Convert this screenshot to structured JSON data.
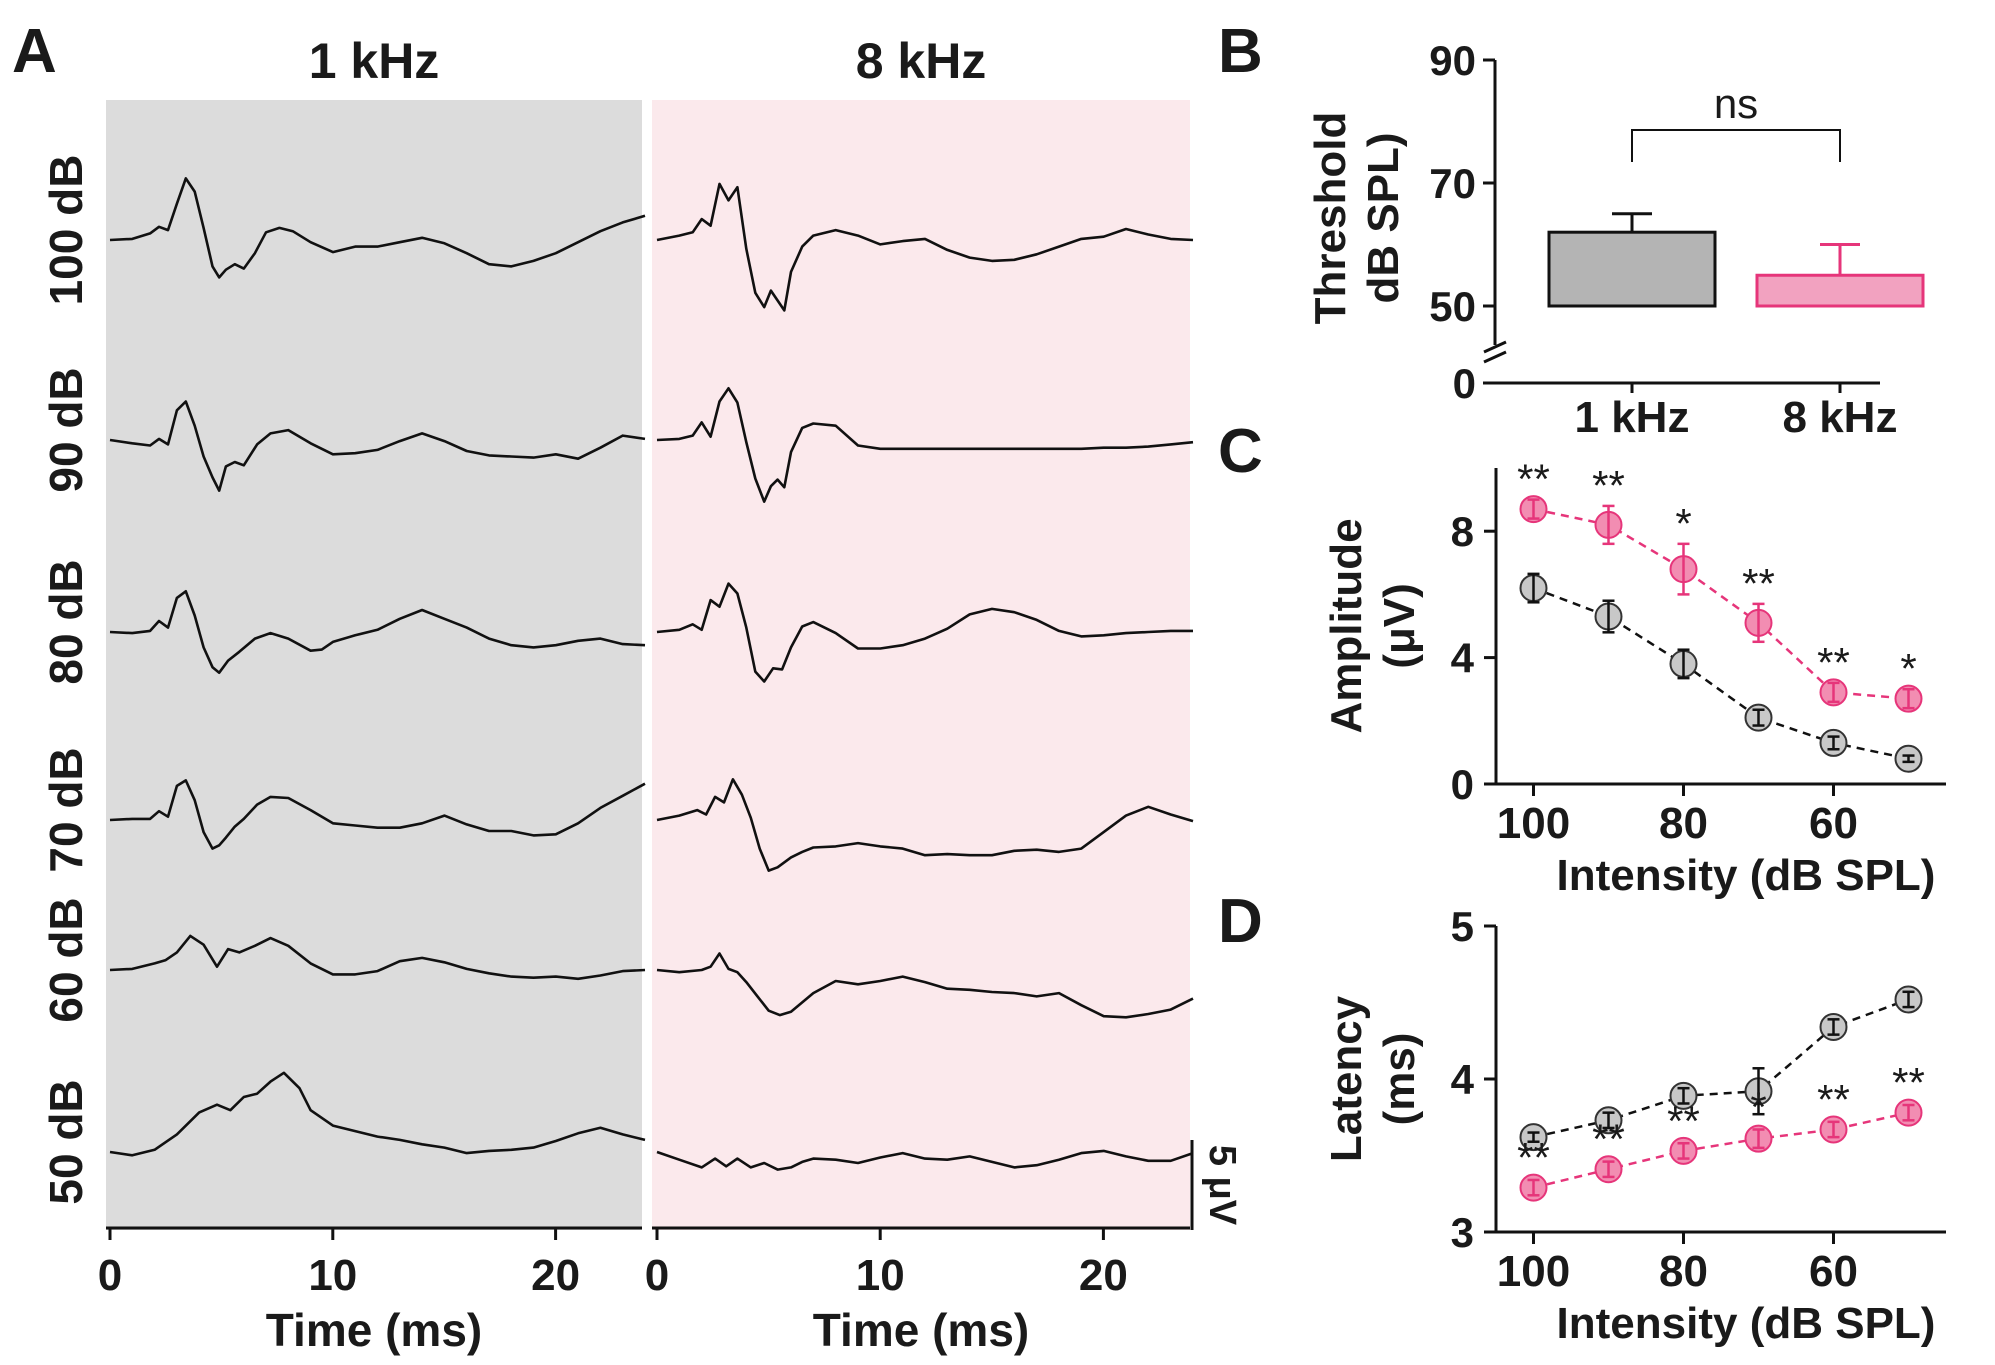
{
  "figure": {
    "panel_labels": [
      "A",
      "B",
      "C",
      "D"
    ]
  },
  "chart_data": [
    {
      "panel": "A",
      "type": "line",
      "description_title": "ABR waveforms",
      "columns": [
        {
          "title": "1 kHz",
          "bg_color": "#dcdcdc"
        },
        {
          "title": "8 kHz",
          "bg_color": "#fbe9ec"
        }
      ],
      "row_labels": [
        "100 dB",
        "90 dB",
        "80 dB",
        "70 dB",
        "60 dB",
        "50 dB"
      ],
      "xlabel": "Time (ms)",
      "xlim": [
        0,
        25
      ],
      "xticks": [
        "0",
        "10",
        "20"
      ],
      "scalebar_label": "5 μV",
      "line_color": "#111111",
      "series": [
        {
          "name": "1 kHz 100 dB",
          "x": [
            0,
            1,
            1.8,
            2.2,
            2.6,
            3,
            3.4,
            3.8,
            4.2,
            4.6,
            4.9,
            5.2,
            5.6,
            6,
            6.5,
            7,
            7.6,
            8.2,
            9,
            10,
            11,
            12,
            13,
            14,
            15,
            16,
            17,
            18,
            19,
            20,
            21,
            22,
            23,
            24
          ],
          "y": [
            0,
            0.1,
            0.6,
            1.2,
            0.9,
            3.3,
            5.6,
            4.4,
            1.1,
            -2.4,
            -3.4,
            -2.7,
            -2.2,
            -2.6,
            -1.2,
            0.7,
            1.1,
            0.8,
            -0.2,
            -1.1,
            -0.6,
            -0.6,
            -0.2,
            0.2,
            -0.3,
            -1.2,
            -2.2,
            -2.4,
            -1.9,
            -1.2,
            -0.2,
            0.8,
            1.6,
            2.2
          ]
        },
        {
          "name": "1 kHz 90 dB",
          "x": [
            0,
            1,
            1.8,
            2.2,
            2.6,
            3,
            3.4,
            3.8,
            4.2,
            4.6,
            4.9,
            5.2,
            5.6,
            6,
            6.6,
            7.2,
            8,
            9,
            10,
            11,
            12,
            13,
            14,
            15,
            16,
            17,
            18,
            19,
            20,
            21,
            22,
            23,
            24
          ],
          "y": [
            0,
            -0.3,
            -0.5,
            0.1,
            -0.4,
            2.7,
            3.5,
            1.3,
            -1.5,
            -3.4,
            -4.6,
            -2.4,
            -2,
            -2.3,
            -0.4,
            0.6,
            0.9,
            -0.3,
            -1.3,
            -1.2,
            -0.9,
            -0.1,
            0.6,
            -0.1,
            -1,
            -1.4,
            -1.5,
            -1.6,
            -1.3,
            -1.7,
            -0.7,
            0.4,
            0.1
          ]
        },
        {
          "name": "1 kHz 80 dB",
          "x": [
            0,
            1,
            1.8,
            2.2,
            2.6,
            3,
            3.4,
            3.8,
            4.2,
            4.6,
            4.9,
            5.3,
            5.8,
            6.5,
            7.2,
            8,
            9,
            9.5,
            10,
            11,
            12,
            13,
            14,
            15,
            16,
            17,
            18,
            19,
            20,
            21,
            22,
            23,
            24
          ],
          "y": [
            0,
            -0.1,
            0.1,
            1,
            0.4,
            3.1,
            3.7,
            1.5,
            -1.4,
            -3.2,
            -3.7,
            -2.6,
            -1.8,
            -0.6,
            -0.1,
            -0.6,
            -1.7,
            -1.6,
            -0.9,
            -0.3,
            0.2,
            1.2,
            2,
            1.2,
            0.4,
            -0.6,
            -1.2,
            -1.4,
            -1.2,
            -0.8,
            -0.6,
            -1.1,
            -1.2
          ]
        },
        {
          "name": "1 kHz 70 dB",
          "x": [
            0,
            1,
            1.8,
            2.2,
            2.6,
            3,
            3.4,
            3.8,
            4.2,
            4.6,
            4.9,
            5.2,
            5.6,
            6,
            6.6,
            7.2,
            8,
            9,
            10,
            11,
            12,
            13,
            14,
            15,
            16,
            17,
            18,
            19,
            20,
            21,
            22,
            23,
            24
          ],
          "y": [
            0,
            0.1,
            0.1,
            0.8,
            0.3,
            3.1,
            3.6,
            1.8,
            -1.1,
            -2.6,
            -2.3,
            -1.6,
            -0.6,
            0.1,
            1.4,
            2.1,
            2,
            0.9,
            -0.3,
            -0.5,
            -0.7,
            -0.7,
            -0.3,
            0.4,
            -0.4,
            -1,
            -1,
            -1.4,
            -1.3,
            -0.3,
            1.1,
            2.2,
            3.3
          ]
        },
        {
          "name": "1 kHz 60 dB",
          "x": [
            0,
            1,
            2,
            2.5,
            3,
            3.6,
            4.2,
            4.8,
            5.3,
            5.8,
            6.5,
            7.2,
            8,
            9,
            10,
            11,
            12,
            13,
            14,
            15,
            16,
            17,
            18,
            19,
            20,
            21,
            22,
            23,
            24
          ],
          "y": [
            0,
            0.1,
            0.6,
            0.9,
            1.6,
            3.1,
            2.3,
            0.3,
            1.9,
            1.6,
            2.2,
            2.9,
            2.2,
            0.6,
            -0.4,
            -0.4,
            -0.1,
            0.8,
            1.1,
            0.7,
            0.1,
            -0.3,
            -0.6,
            -0.7,
            -0.6,
            -0.8,
            -0.5,
            -0.1,
            0
          ]
        },
        {
          "name": "1 kHz 50 dB",
          "x": [
            0,
            1,
            2,
            3,
            4,
            4.8,
            5.4,
            6,
            6.6,
            7.2,
            7.8,
            8.5,
            9,
            10,
            11,
            12,
            13,
            14,
            15,
            16,
            17,
            18,
            19,
            20,
            21,
            22,
            23,
            24
          ],
          "y": [
            0,
            -0.3,
            0.2,
            1.6,
            3.6,
            4.3,
            3.8,
            5,
            5.3,
            6.4,
            7.2,
            5.8,
            3.8,
            2.4,
            1.9,
            1.4,
            1.1,
            0.7,
            0.4,
            -0.1,
            0.1,
            0.2,
            0.4,
            1,
            1.7,
            2.2,
            1.6,
            1.1
          ]
        },
        {
          "name": "8 kHz 100 dB",
          "x": [
            0,
            1,
            1.6,
            2,
            2.4,
            2.8,
            3.2,
            3.6,
            4,
            4.4,
            4.8,
            5.1,
            5.4,
            5.7,
            6,
            6.5,
            7,
            8,
            9,
            10,
            11,
            12,
            13,
            14,
            15,
            16,
            17,
            18,
            19,
            20,
            21,
            22,
            23,
            24
          ],
          "y": [
            0,
            0.4,
            0.7,
            1.9,
            1.3,
            5.1,
            3.6,
            4.8,
            -0.8,
            -4.8,
            -6.1,
            -4.6,
            -5.5,
            -6.4,
            -2.9,
            -0.6,
            0.4,
            0.9,
            0.4,
            -0.4,
            -0.1,
            0.1,
            -0.9,
            -1.6,
            -1.9,
            -1.8,
            -1.3,
            -0.6,
            0.1,
            0.3,
            1,
            0.5,
            0.1,
            0
          ]
        },
        {
          "name": "8 kHz 90 dB",
          "x": [
            0,
            1,
            1.6,
            2,
            2.4,
            2.8,
            3.2,
            3.6,
            4,
            4.4,
            4.8,
            5.1,
            5.4,
            5.7,
            6,
            6.5,
            7,
            8,
            9,
            10,
            11,
            12,
            13,
            14,
            15,
            16,
            17,
            18,
            19,
            20,
            21,
            22,
            23,
            24
          ],
          "y": [
            0,
            0.1,
            0.4,
            1.6,
            0.3,
            3.5,
            4.7,
            3.4,
            -0.2,
            -3.5,
            -5.6,
            -4.2,
            -3.6,
            -4.3,
            -1.1,
            1.1,
            1.5,
            1.3,
            -0.5,
            -0.8,
            -0.8,
            -0.8,
            -0.8,
            -0.8,
            -0.8,
            -0.8,
            -0.8,
            -0.8,
            -0.8,
            -0.7,
            -0.7,
            -0.6,
            -0.4,
            -0.2
          ]
        },
        {
          "name": "8 kHz 80 dB",
          "x": [
            0,
            1,
            1.6,
            2,
            2.4,
            2.8,
            3.2,
            3.6,
            4,
            4.4,
            4.8,
            5.2,
            5.6,
            6,
            6.5,
            7,
            8,
            9,
            10,
            11,
            12,
            13,
            14,
            15,
            16,
            17,
            18,
            19,
            20,
            21,
            22,
            23,
            24
          ],
          "y": [
            0,
            0.2,
            0.7,
            0.2,
            2.9,
            2.3,
            4.4,
            3.5,
            0.4,
            -3.6,
            -4.5,
            -3.3,
            -3.4,
            -1.4,
            0.5,
            0.9,
            -0.1,
            -1.5,
            -1.5,
            -1.2,
            -0.6,
            0.3,
            1.6,
            2.1,
            1.8,
            1.1,
            0.1,
            -0.4,
            -0.3,
            -0.1,
            0,
            0.1,
            0.1
          ]
        },
        {
          "name": "8 kHz 70 dB",
          "x": [
            0,
            1,
            1.8,
            2.2,
            2.6,
            3,
            3.4,
            3.8,
            4.2,
            4.6,
            5,
            5.4,
            6,
            6.5,
            7,
            8,
            9,
            10,
            11,
            12,
            13,
            14,
            15,
            16,
            17,
            18,
            19,
            20,
            21,
            22,
            23,
            24
          ],
          "y": [
            0,
            0.4,
            0.9,
            0.5,
            2.1,
            1.6,
            3.7,
            2.3,
            0.2,
            -2.6,
            -4.6,
            -4.3,
            -3.4,
            -2.9,
            -2.5,
            -2.4,
            -2.1,
            -2.4,
            -2.6,
            -3.2,
            -3.1,
            -3.2,
            -3.2,
            -2.8,
            -2.7,
            -2.9,
            -2.6,
            -1.1,
            0.4,
            1.2,
            0.5,
            -0.1
          ]
        },
        {
          "name": "8 kHz 60 dB",
          "x": [
            0,
            1,
            2,
            2.4,
            2.8,
            3.2,
            3.6,
            4,
            4.5,
            5,
            5.5,
            6,
            7,
            8,
            9,
            10,
            11,
            12,
            13,
            14,
            15,
            16,
            17,
            18,
            19,
            20,
            21,
            22,
            23,
            24
          ],
          "y": [
            0,
            -0.2,
            0,
            0.3,
            1.5,
            0.1,
            -0.2,
            -1.1,
            -2.4,
            -3.7,
            -4.1,
            -3.8,
            -2.1,
            -1,
            -1.3,
            -1,
            -0.6,
            -1.1,
            -1.7,
            -1.8,
            -2,
            -2.1,
            -2.4,
            -2.1,
            -3.2,
            -4.2,
            -4.3,
            -4,
            -3.6,
            -2.6
          ]
        },
        {
          "name": "8 kHz 50 dB",
          "x": [
            0,
            1,
            2,
            2.6,
            3.1,
            3.6,
            4.2,
            4.8,
            5.4,
            6,
            6.5,
            7,
            8,
            9,
            10,
            11,
            12,
            13,
            14,
            15,
            16,
            17,
            18,
            19,
            20,
            21,
            22,
            23,
            24
          ],
          "y": [
            0,
            -0.7,
            -1.4,
            -0.6,
            -1.3,
            -0.6,
            -1.4,
            -1,
            -1.6,
            -1.4,
            -0.9,
            -0.6,
            -0.7,
            -1,
            -0.5,
            -0.1,
            -0.6,
            -0.7,
            -0.4,
            -0.9,
            -1.4,
            -1.2,
            -0.7,
            -0.1,
            0.1,
            -0.4,
            -0.8,
            -0.8,
            -0.1
          ]
        }
      ]
    },
    {
      "panel": "B",
      "type": "bar",
      "categories": [
        "1 kHz",
        "8 kHz"
      ],
      "values": [
        62,
        55
      ],
      "errors": [
        3,
        5
      ],
      "bar_base": 50,
      "colors": [
        "#b4b4b4",
        "#f2a2c0"
      ],
      "edge_colors": [
        "#111111",
        "#e6357a"
      ],
      "ylabel": "Threshold dB SPL)",
      "ylabel_line1": "Threshold",
      "ylabel_line2": "dB SPL)",
      "ylim": [
        50,
        90
      ],
      "yticks": [
        "50",
        "70",
        "90"
      ],
      "axis_break_tick": "0",
      "annotation": "ns"
    },
    {
      "panel": "C",
      "type": "line",
      "xlabel": "Intensity (dB SPL)",
      "ylabel": "Amplitude (μV)",
      "ylabel_line1": "Amplitude",
      "ylabel_line2": "(μV)",
      "x": [
        100,
        90,
        80,
        70,
        60,
        50
      ],
      "xlim": [
        105,
        45
      ],
      "xticks": [
        "100",
        "80",
        "60"
      ],
      "ylim": [
        0,
        10
      ],
      "yticks": [
        "0",
        "4",
        "8"
      ],
      "series": [
        {
          "name": "1 kHz",
          "color": "#c8c8c8",
          "line_color": "#111111",
          "values": [
            6.2,
            5.3,
            3.8,
            2.1,
            1.3,
            0.8
          ],
          "errors": [
            0.45,
            0.5,
            0.45,
            0.25,
            0.2,
            0.1
          ]
        },
        {
          "name": "8 kHz",
          "color": "#f28db2",
          "line_color": "#e6357a",
          "values": [
            8.7,
            8.2,
            6.8,
            5.1,
            2.9,
            2.7
          ],
          "errors": [
            0.3,
            0.6,
            0.8,
            0.6,
            0.3,
            0.3
          ]
        }
      ],
      "significance": [
        "**",
        "**",
        "*",
        "**",
        "**",
        "*"
      ]
    },
    {
      "panel": "D",
      "type": "line",
      "xlabel": "Intensity (dB SPL)",
      "ylabel": "Latency (ms)",
      "ylabel_line1": "Latency",
      "ylabel_line2": "(ms)",
      "x": [
        100,
        90,
        80,
        70,
        60,
        50
      ],
      "xlim": [
        105,
        45
      ],
      "xticks": [
        "100",
        "80",
        "60"
      ],
      "ylim": [
        3,
        5
      ],
      "yticks": [
        "3",
        "4",
        "5"
      ],
      "series": [
        {
          "name": "1 kHz",
          "color": "#c8c8c8",
          "line_color": "#111111",
          "values": [
            3.62,
            3.73,
            3.89,
            3.92,
            4.34,
            4.52
          ],
          "errors": [
            0.03,
            0.05,
            0.05,
            0.15,
            0.05,
            0.05
          ]
        },
        {
          "name": "8 kHz",
          "color": "#f28db2",
          "line_color": "#e6357a",
          "values": [
            3.29,
            3.41,
            3.53,
            3.61,
            3.67,
            3.78
          ],
          "errors": [
            0.05,
            0.05,
            0.05,
            0.06,
            0.05,
            0.05
          ]
        }
      ],
      "significance": [
        "**",
        "**",
        "**",
        "*",
        "**",
        "**"
      ]
    }
  ]
}
